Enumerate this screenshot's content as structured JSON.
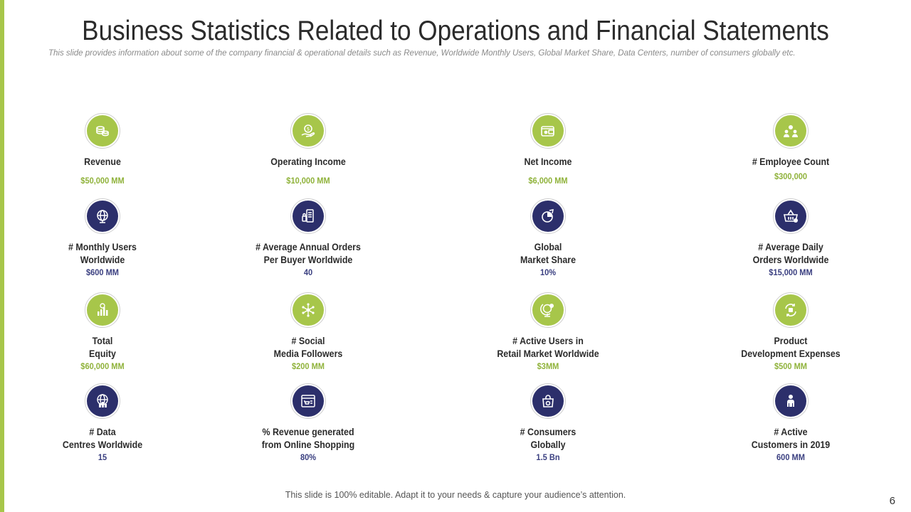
{
  "title": "Business Statistics Related to Operations and Financial Statements",
  "subtitle": "This slide provides information about some of the company financial & operational details such as Revenue, Worldwide Monthly Users, Global Market Share, Data Centers, number of consumers globally etc.",
  "footer": "This slide is 100% editable. Adapt it to your needs & capture your audience’s attention.",
  "page_number": "6",
  "colors": {
    "green": "#a7c64a",
    "navy": "#2c2f6b"
  },
  "stats": [
    {
      "label_lines": [
        "Revenue"
      ],
      "value": "$50,000 MM",
      "icon": "coins-icon"
    },
    {
      "label_lines": [
        "Operating Income"
      ],
      "value": "$10,000 MM",
      "icon": "hand-dollar-icon"
    },
    {
      "label_lines": [
        "Net Income"
      ],
      "value": "$6,000 MM",
      "icon": "wallet-icon"
    },
    {
      "label_lines": [
        "# Employee Count"
      ],
      "value": "$300,000",
      "icon": "team-icon"
    },
    {
      "label_lines": [
        "# Monthly Users",
        "Worldwide"
      ],
      "value": "$600 MM",
      "icon": "globe-icon"
    },
    {
      "label_lines": [
        "# Average Annual Orders",
        "Per Buyer Worldwide"
      ],
      "value": "40",
      "icon": "receipt-icon"
    },
    {
      "label_lines": [
        "Global",
        "Market Share"
      ],
      "value": "10%",
      "icon": "pie-chart-icon"
    },
    {
      "label_lines": [
        "# Average Daily",
        "Orders Worldwide"
      ],
      "value": "$15,000 MM",
      "icon": "basket-icon"
    },
    {
      "label_lines": [
        "Total",
        "Equity"
      ],
      "value": "$60,000 MM",
      "icon": "bar-chart-icon"
    },
    {
      "label_lines": [
        "# Social",
        "Media Followers"
      ],
      "value": "$200 MM",
      "icon": "network-icon"
    },
    {
      "label_lines": [
        "# Active Users in",
        "Retail Market Worldwide"
      ],
      "value": "$3MM",
      "icon": "globe-stand-icon"
    },
    {
      "label_lines": [
        "Product",
        "Development Expenses"
      ],
      "value": "$500 MM",
      "icon": "cycle-icon"
    },
    {
      "label_lines": [
        "# Data",
        "Centres Worldwide"
      ],
      "value": "15",
      "icon": "globe-buildings-icon"
    },
    {
      "label_lines": [
        "% Revenue generated",
        "from Online Shopping"
      ],
      "value": "80%",
      "icon": "browser-cart-icon"
    },
    {
      "label_lines": [
        "# Consumers",
        "Globally"
      ],
      "value": "1.5 Bn",
      "icon": "shopping-bag-icon"
    },
    {
      "label_lines": [
        "# Active",
        "Customers in 2019"
      ],
      "value": "600 MM",
      "icon": "user-icon"
    }
  ]
}
